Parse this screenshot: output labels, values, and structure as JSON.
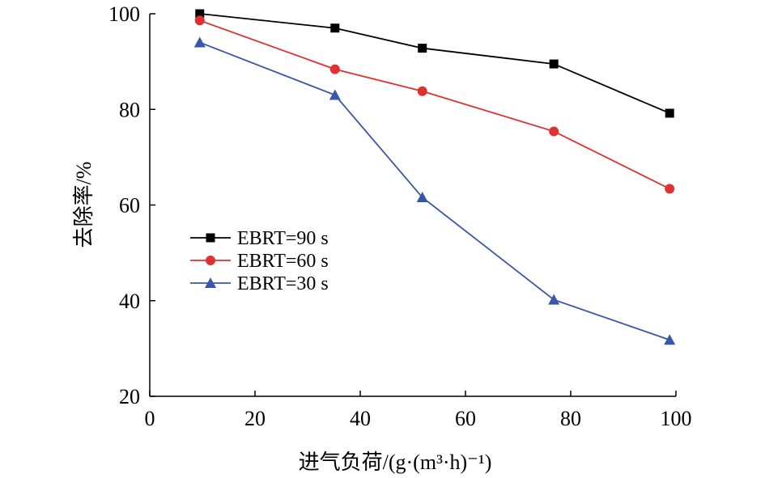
{
  "chart_data": {
    "type": "line",
    "title": "",
    "xlabel": "进气负荷/(g·(m³·h)⁻¹)",
    "ylabel": "去除率/%",
    "xlim": [
      0,
      100
    ],
    "ylim": [
      20,
      100
    ],
    "xticks": [
      0,
      20,
      40,
      60,
      80,
      100
    ],
    "yticks": [
      20,
      40,
      60,
      80,
      100
    ],
    "xtick_labels": [
      "0",
      "20",
      "40",
      "60",
      "80",
      "100"
    ],
    "ytick_labels": [
      "20",
      "40",
      "60",
      "80",
      "100"
    ],
    "grid": false,
    "legend_position": "center-left",
    "x": [
      9.5,
      35.2,
      51.8,
      76.8,
      98.8
    ],
    "series": [
      {
        "name": "EBRT=90 s",
        "values": [
          100.0,
          97.0,
          92.8,
          89.5,
          79.2
        ],
        "color": "#000000",
        "marker": "square"
      },
      {
        "name": "EBRT=60 s",
        "values": [
          98.6,
          88.4,
          83.8,
          75.4,
          63.4
        ],
        "color": "#e03030",
        "marker": "circle"
      },
      {
        "name": "EBRT=30 s",
        "values": [
          94.0,
          83.0,
          61.6,
          40.2,
          31.8
        ],
        "color": "#3a56a8",
        "marker": "triangle"
      }
    ]
  }
}
